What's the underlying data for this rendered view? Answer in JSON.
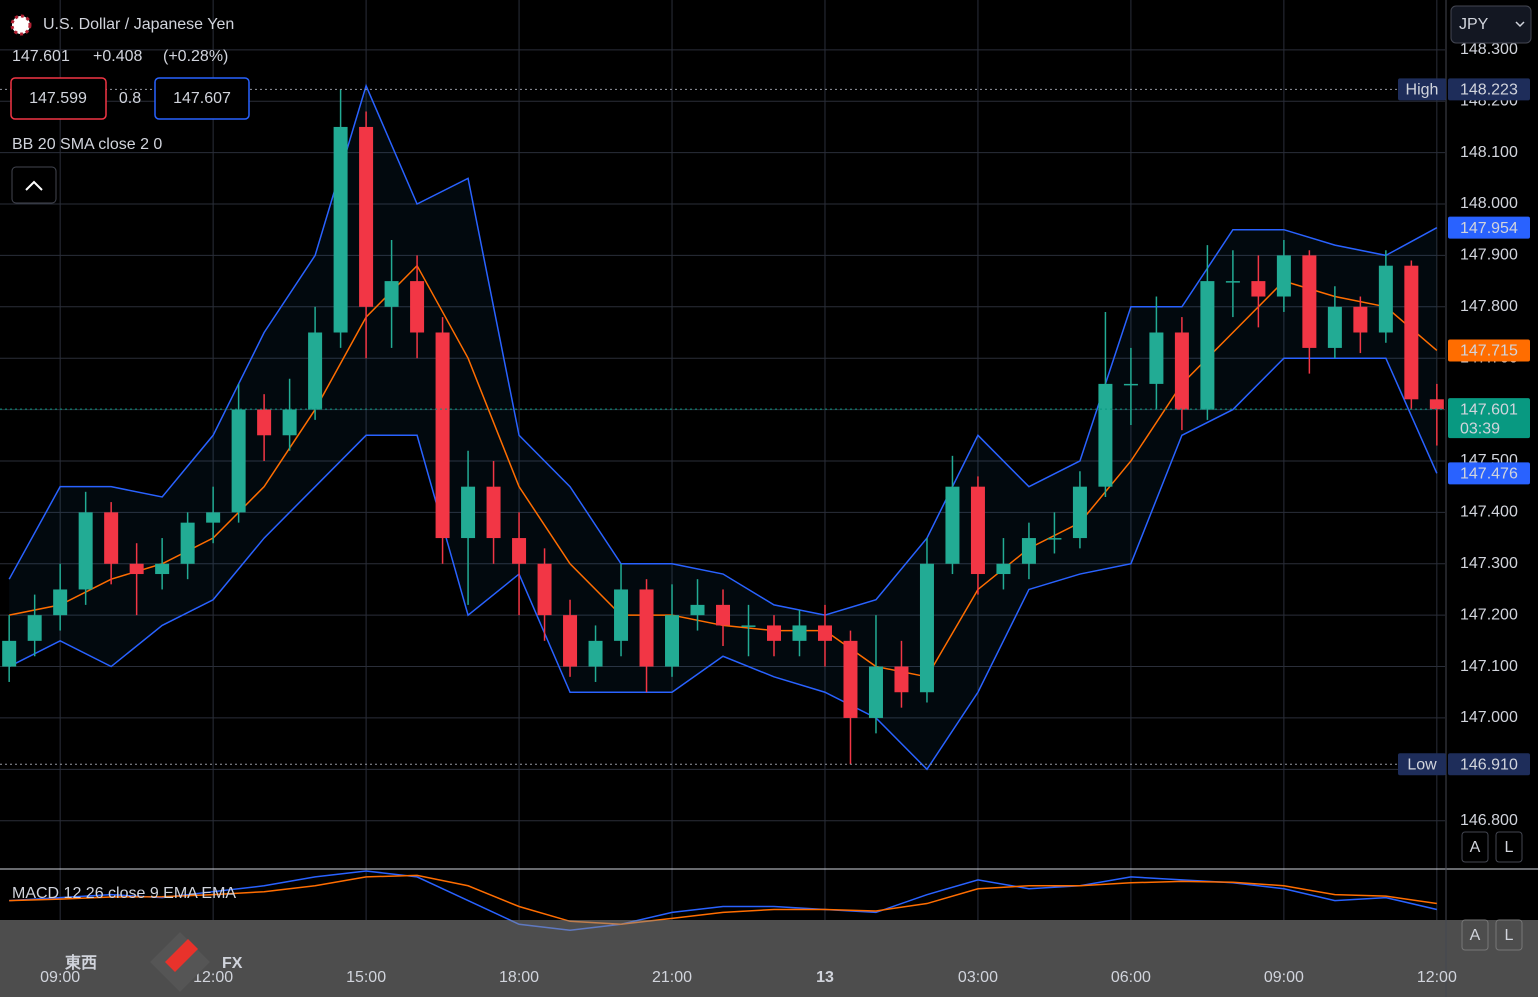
{
  "header": {
    "title": "U.S. Dollar / Japanese Yen",
    "last": "147.601",
    "change": "+0.408",
    "change_pct": "(+0.28%)",
    "bid": "147.599",
    "spread": "0.8",
    "ask": "147.607",
    "indicator": "BB 20 SMA close 2 0",
    "currency": "JPY",
    "buttons": [
      "A",
      "L"
    ]
  },
  "brand": {
    "left": "東西",
    "right": "FX"
  },
  "chart_data": {
    "type": "candlestick",
    "up_color": "#22ab94",
    "down_color": "#f23645",
    "x": [
      -1,
      -0.5,
      0,
      0.5,
      1,
      1.5,
      2,
      2.5,
      3,
      3.5,
      4,
      4.5,
      5,
      5.5,
      6,
      6.5,
      7,
      7.5,
      8,
      8.5,
      9,
      9.5,
      10,
      10.5,
      11,
      11.5,
      12,
      12.5,
      13,
      13.5,
      14,
      14.5,
      15,
      15.5,
      16,
      16.5,
      17,
      17.5,
      18,
      18.5,
      19,
      19.5,
      20,
      20.5,
      21,
      21.5,
      22,
      22.5,
      23,
      23.5,
      24,
      24.5,
      25,
      25.5,
      26,
      26.5,
      27
    ],
    "ohlc": [
      [
        147.1,
        147.2,
        147.07,
        147.15
      ],
      [
        147.15,
        147.24,
        147.12,
        147.2
      ],
      [
        147.2,
        147.3,
        147.17,
        147.25
      ],
      [
        147.25,
        147.44,
        147.22,
        147.4
      ],
      [
        147.4,
        147.42,
        147.26,
        147.3
      ],
      [
        147.3,
        147.34,
        147.2,
        147.28
      ],
      [
        147.28,
        147.35,
        147.25,
        147.3
      ],
      [
        147.3,
        147.4,
        147.27,
        147.38
      ],
      [
        147.38,
        147.45,
        147.34,
        147.4
      ],
      [
        147.4,
        147.65,
        147.38,
        147.6
      ],
      [
        147.6,
        147.63,
        147.5,
        147.55
      ],
      [
        147.55,
        147.66,
        147.52,
        147.6
      ],
      [
        147.6,
        147.8,
        147.58,
        147.75
      ],
      [
        147.75,
        148.223,
        147.72,
        148.15
      ],
      [
        148.15,
        148.18,
        147.7,
        147.8
      ],
      [
        147.8,
        147.93,
        147.72,
        147.85
      ],
      [
        147.85,
        147.9,
        147.7,
        147.75
      ],
      [
        147.75,
        147.78,
        147.3,
        147.35
      ],
      [
        147.35,
        147.52,
        147.22,
        147.45
      ],
      [
        147.45,
        147.5,
        147.3,
        147.35
      ],
      [
        147.35,
        147.4,
        147.2,
        147.3
      ],
      [
        147.3,
        147.33,
        147.15,
        147.2
      ],
      [
        147.2,
        147.23,
        147.08,
        147.1
      ],
      [
        147.1,
        147.18,
        147.07,
        147.15
      ],
      [
        147.15,
        147.3,
        147.12,
        147.25
      ],
      [
        147.25,
        147.27,
        147.05,
        147.1
      ],
      [
        147.1,
        147.26,
        147.08,
        147.2
      ],
      [
        147.2,
        147.27,
        147.17,
        147.22
      ],
      [
        147.22,
        147.25,
        147.14,
        147.18
      ],
      [
        147.18,
        147.22,
        147.12,
        147.18
      ],
      [
        147.18,
        147.2,
        147.12,
        147.15
      ],
      [
        147.15,
        147.21,
        147.12,
        147.18
      ],
      [
        147.18,
        147.22,
        147.1,
        147.15
      ],
      [
        147.15,
        147.17,
        146.91,
        147.0
      ],
      [
        147.0,
        147.2,
        146.97,
        147.1
      ],
      [
        147.1,
        147.15,
        147.02,
        147.05
      ],
      [
        147.05,
        147.35,
        147.03,
        147.3
      ],
      [
        147.3,
        147.51,
        147.28,
        147.45
      ],
      [
        147.45,
        147.47,
        147.24,
        147.28
      ],
      [
        147.28,
        147.35,
        147.25,
        147.3
      ],
      [
        147.3,
        147.38,
        147.27,
        147.35
      ],
      [
        147.35,
        147.4,
        147.32,
        147.35
      ],
      [
        147.35,
        147.48,
        147.33,
        147.45
      ],
      [
        147.45,
        147.79,
        147.43,
        147.65
      ],
      [
        147.65,
        147.72,
        147.57,
        147.65
      ],
      [
        147.65,
        147.82,
        147.6,
        147.75
      ],
      [
        147.75,
        147.78,
        147.56,
        147.6
      ],
      [
        147.6,
        147.92,
        147.58,
        147.85
      ],
      [
        147.85,
        147.91,
        147.78,
        147.85
      ],
      [
        147.85,
        147.9,
        147.76,
        147.82
      ],
      [
        147.82,
        147.93,
        147.79,
        147.9
      ],
      [
        147.9,
        147.91,
        147.67,
        147.72
      ],
      [
        147.72,
        147.84,
        147.7,
        147.8
      ],
      [
        147.8,
        147.82,
        147.71,
        147.75
      ],
      [
        147.75,
        147.91,
        147.73,
        147.88
      ],
      [
        147.88,
        147.89,
        147.6,
        147.62
      ],
      [
        147.62,
        147.65,
        147.53,
        147.601
      ]
    ],
    "bands": {
      "x": [
        -1,
        0,
        1,
        2,
        3,
        4,
        5,
        6,
        7,
        8,
        9,
        10,
        11,
        12,
        13,
        14,
        15,
        16,
        17,
        18,
        19,
        20,
        21,
        22,
        23,
        24,
        25,
        26,
        27
      ],
      "upper": [
        147.27,
        147.45,
        147.45,
        147.43,
        147.55,
        147.75,
        147.9,
        148.23,
        148.0,
        148.05,
        147.55,
        147.45,
        147.3,
        147.3,
        147.28,
        147.22,
        147.2,
        147.23,
        147.35,
        147.55,
        147.45,
        147.5,
        147.8,
        147.8,
        147.95,
        147.95,
        147.92,
        147.9,
        147.954
      ],
      "basis": [
        147.2,
        147.22,
        147.27,
        147.3,
        147.35,
        147.45,
        147.6,
        147.78,
        147.88,
        147.7,
        147.45,
        147.3,
        147.2,
        147.2,
        147.18,
        147.17,
        147.17,
        147.1,
        147.08,
        147.25,
        147.33,
        147.38,
        147.5,
        147.65,
        147.75,
        147.85,
        147.82,
        147.8,
        147.715
      ],
      "lower": [
        147.1,
        147.15,
        147.1,
        147.18,
        147.23,
        147.35,
        147.45,
        147.55,
        147.55,
        147.2,
        147.28,
        147.05,
        147.05,
        147.05,
        147.12,
        147.08,
        147.05,
        147.0,
        146.9,
        147.05,
        147.25,
        147.28,
        147.3,
        147.55,
        147.6,
        147.7,
        147.7,
        147.7,
        147.476
      ],
      "band_color": "#2962ff",
      "basis_color": "#ff6d00"
    },
    "xlim": [
      -1.18,
      27.16
    ],
    "ylim": [
      146.708,
      148.397
    ],
    "xticks": [
      {
        "value": 0,
        "label": "09:00"
      },
      {
        "value": 3,
        "label": "12:00"
      },
      {
        "value": 6,
        "label": "15:00"
      },
      {
        "value": 9,
        "label": "18:00"
      },
      {
        "value": 12,
        "label": "21:00"
      },
      {
        "value": 15,
        "label": "13"
      },
      {
        "value": 18,
        "label": "03:00"
      },
      {
        "value": 21,
        "label": "06:00"
      },
      {
        "value": 24,
        "label": "09:00"
      },
      {
        "value": 27,
        "label": "12:00"
      }
    ],
    "yticks": [
      {
        "value": 148.3,
        "label": "148.300"
      },
      {
        "value": 148.2,
        "label": "148.200"
      },
      {
        "value": 148.1,
        "label": "148.100"
      },
      {
        "value": 148.0,
        "label": "148.000"
      },
      {
        "value": 147.9,
        "label": "147.900"
      },
      {
        "value": 147.8,
        "label": "147.800"
      },
      {
        "value": 147.7,
        "label": "147.700"
      },
      {
        "value": 147.6,
        "label": "147.600"
      },
      {
        "value": 147.5,
        "label": "147.500"
      },
      {
        "value": 147.4,
        "label": "147.400"
      },
      {
        "value": 147.3,
        "label": "147.300"
      },
      {
        "value": 147.2,
        "label": "147.200"
      },
      {
        "value": 147.1,
        "label": "147.100"
      },
      {
        "value": 147.0,
        "label": "147.000"
      },
      {
        "value": 146.9,
        "label": "146.900"
      },
      {
        "value": 146.8,
        "label": "146.800"
      }
    ],
    "grid": true,
    "badges": [
      {
        "name": "High",
        "value": 148.223,
        "value_label": "148.223",
        "color": "#1e2d5a",
        "dotted": true
      },
      {
        "value": 147.954,
        "value_label": "147.954",
        "color": "#2962ff"
      },
      {
        "value": 147.715,
        "value_label": "147.715",
        "color": "#ff6d00"
      },
      {
        "value": 147.601,
        "value_label": "147.601",
        "timer": "03:39",
        "color": "#089981",
        "dotted": true
      },
      {
        "value": 147.476,
        "value_label": "147.476",
        "color": "#2962ff"
      },
      {
        "name": "Low",
        "value": 146.91,
        "value_label": "146.910",
        "color": "#1e2d5a",
        "dotted": true
      }
    ],
    "macd": {
      "title": "MACD 12 26 close 9 EMA EMA",
      "ylim": [
        -0.15,
        0.11
      ],
      "x": [
        -1,
        0,
        1,
        2,
        3,
        4,
        5,
        6,
        7,
        8,
        9,
        10,
        11,
        12,
        13,
        14,
        15,
        16,
        17,
        18,
        19,
        20,
        21,
        22,
        23,
        24,
        25,
        26,
        27
      ],
      "series": [
        {
          "color": "#2962ff",
          "values": [
            0,
            0.01,
            0.02,
            0.01,
            0.03,
            0.05,
            0.08,
            0.1,
            0.08,
            0,
            -0.08,
            -0.1,
            -0.08,
            -0.04,
            -0.02,
            -0.02,
            -0.03,
            -0.04,
            0.02,
            0.07,
            0.04,
            0.05,
            0.08,
            0.07,
            0.06,
            0.04,
            0,
            0.01,
            -0.03
          ]
        },
        {
          "color": "#ff6d00",
          "values": [
            0,
            0.005,
            0.012,
            0.013,
            0.02,
            0.03,
            0.05,
            0.08,
            0.085,
            0.05,
            -0.02,
            -0.07,
            -0.08,
            -0.06,
            -0.04,
            -0.03,
            -0.03,
            -0.035,
            -0.01,
            0.04,
            0.05,
            0.05,
            0.06,
            0.065,
            0.062,
            0.05,
            0.02,
            0.015,
            -0.01
          ]
        }
      ]
    }
  }
}
